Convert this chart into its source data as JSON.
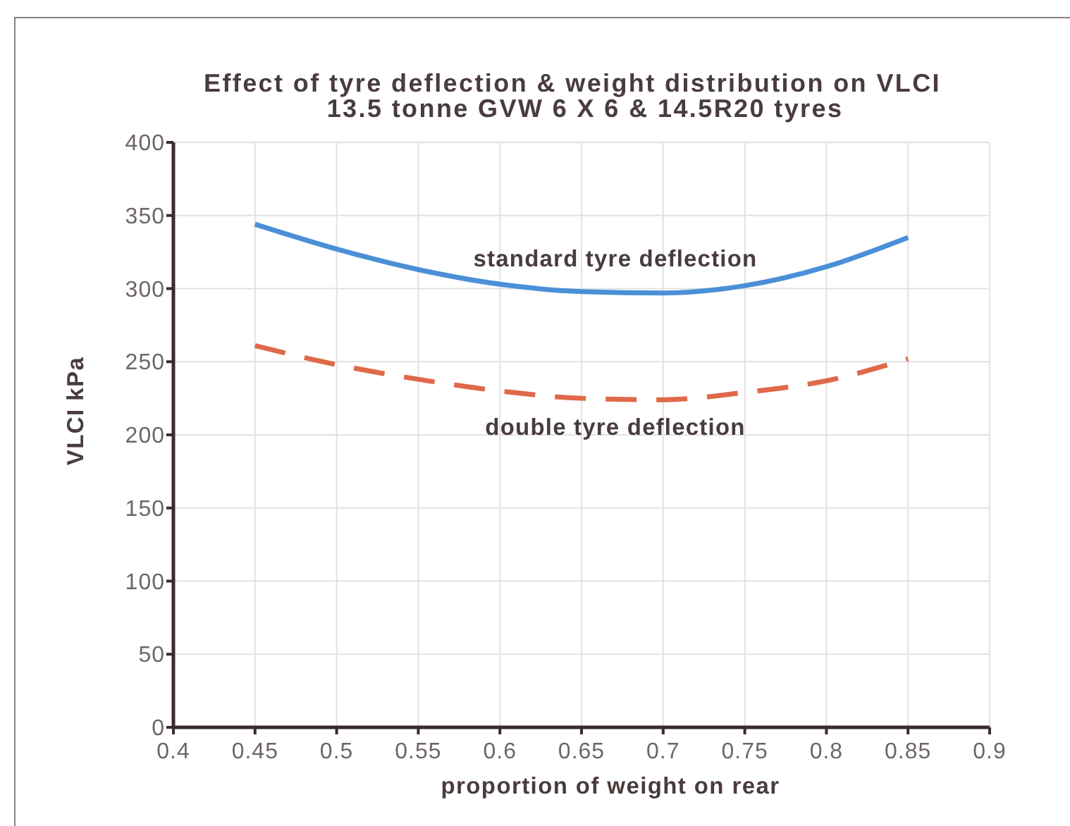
{
  "chart_data": {
    "type": "line",
    "title": "Effect of tyre deflection & weight distribution on VLCI",
    "subtitle": "13.5 tonne GVW 6 X 6 & 14.5R20 tyres",
    "xlabel": "proportion of weight on rear",
    "ylabel": "VLCI kPa",
    "x": [
      0.45,
      0.5,
      0.55,
      0.6,
      0.65,
      0.7,
      0.75,
      0.8,
      0.85
    ],
    "series": [
      {
        "name": "standard tyre deflection",
        "color": "#4a8fd8",
        "line_style": "solid",
        "values": [
          344,
          327,
          313,
          303,
          298,
          297,
          302,
          315,
          335
        ]
      },
      {
        "name": "double tyre deflection",
        "color": "#e0694a",
        "line_style": "dashed",
        "values": [
          261,
          248,
          238,
          230,
          225,
          224,
          229,
          237,
          252
        ]
      }
    ],
    "xlim": [
      0.4,
      0.9
    ],
    "ylim": [
      0,
      400
    ],
    "xticks": [
      0.4,
      0.45,
      0.5,
      0.55,
      0.6,
      0.65,
      0.7,
      0.75,
      0.8,
      0.85,
      0.9
    ],
    "yticks": [
      0,
      50,
      100,
      150,
      200,
      250,
      300,
      350,
      400
    ],
    "grid": true
  }
}
